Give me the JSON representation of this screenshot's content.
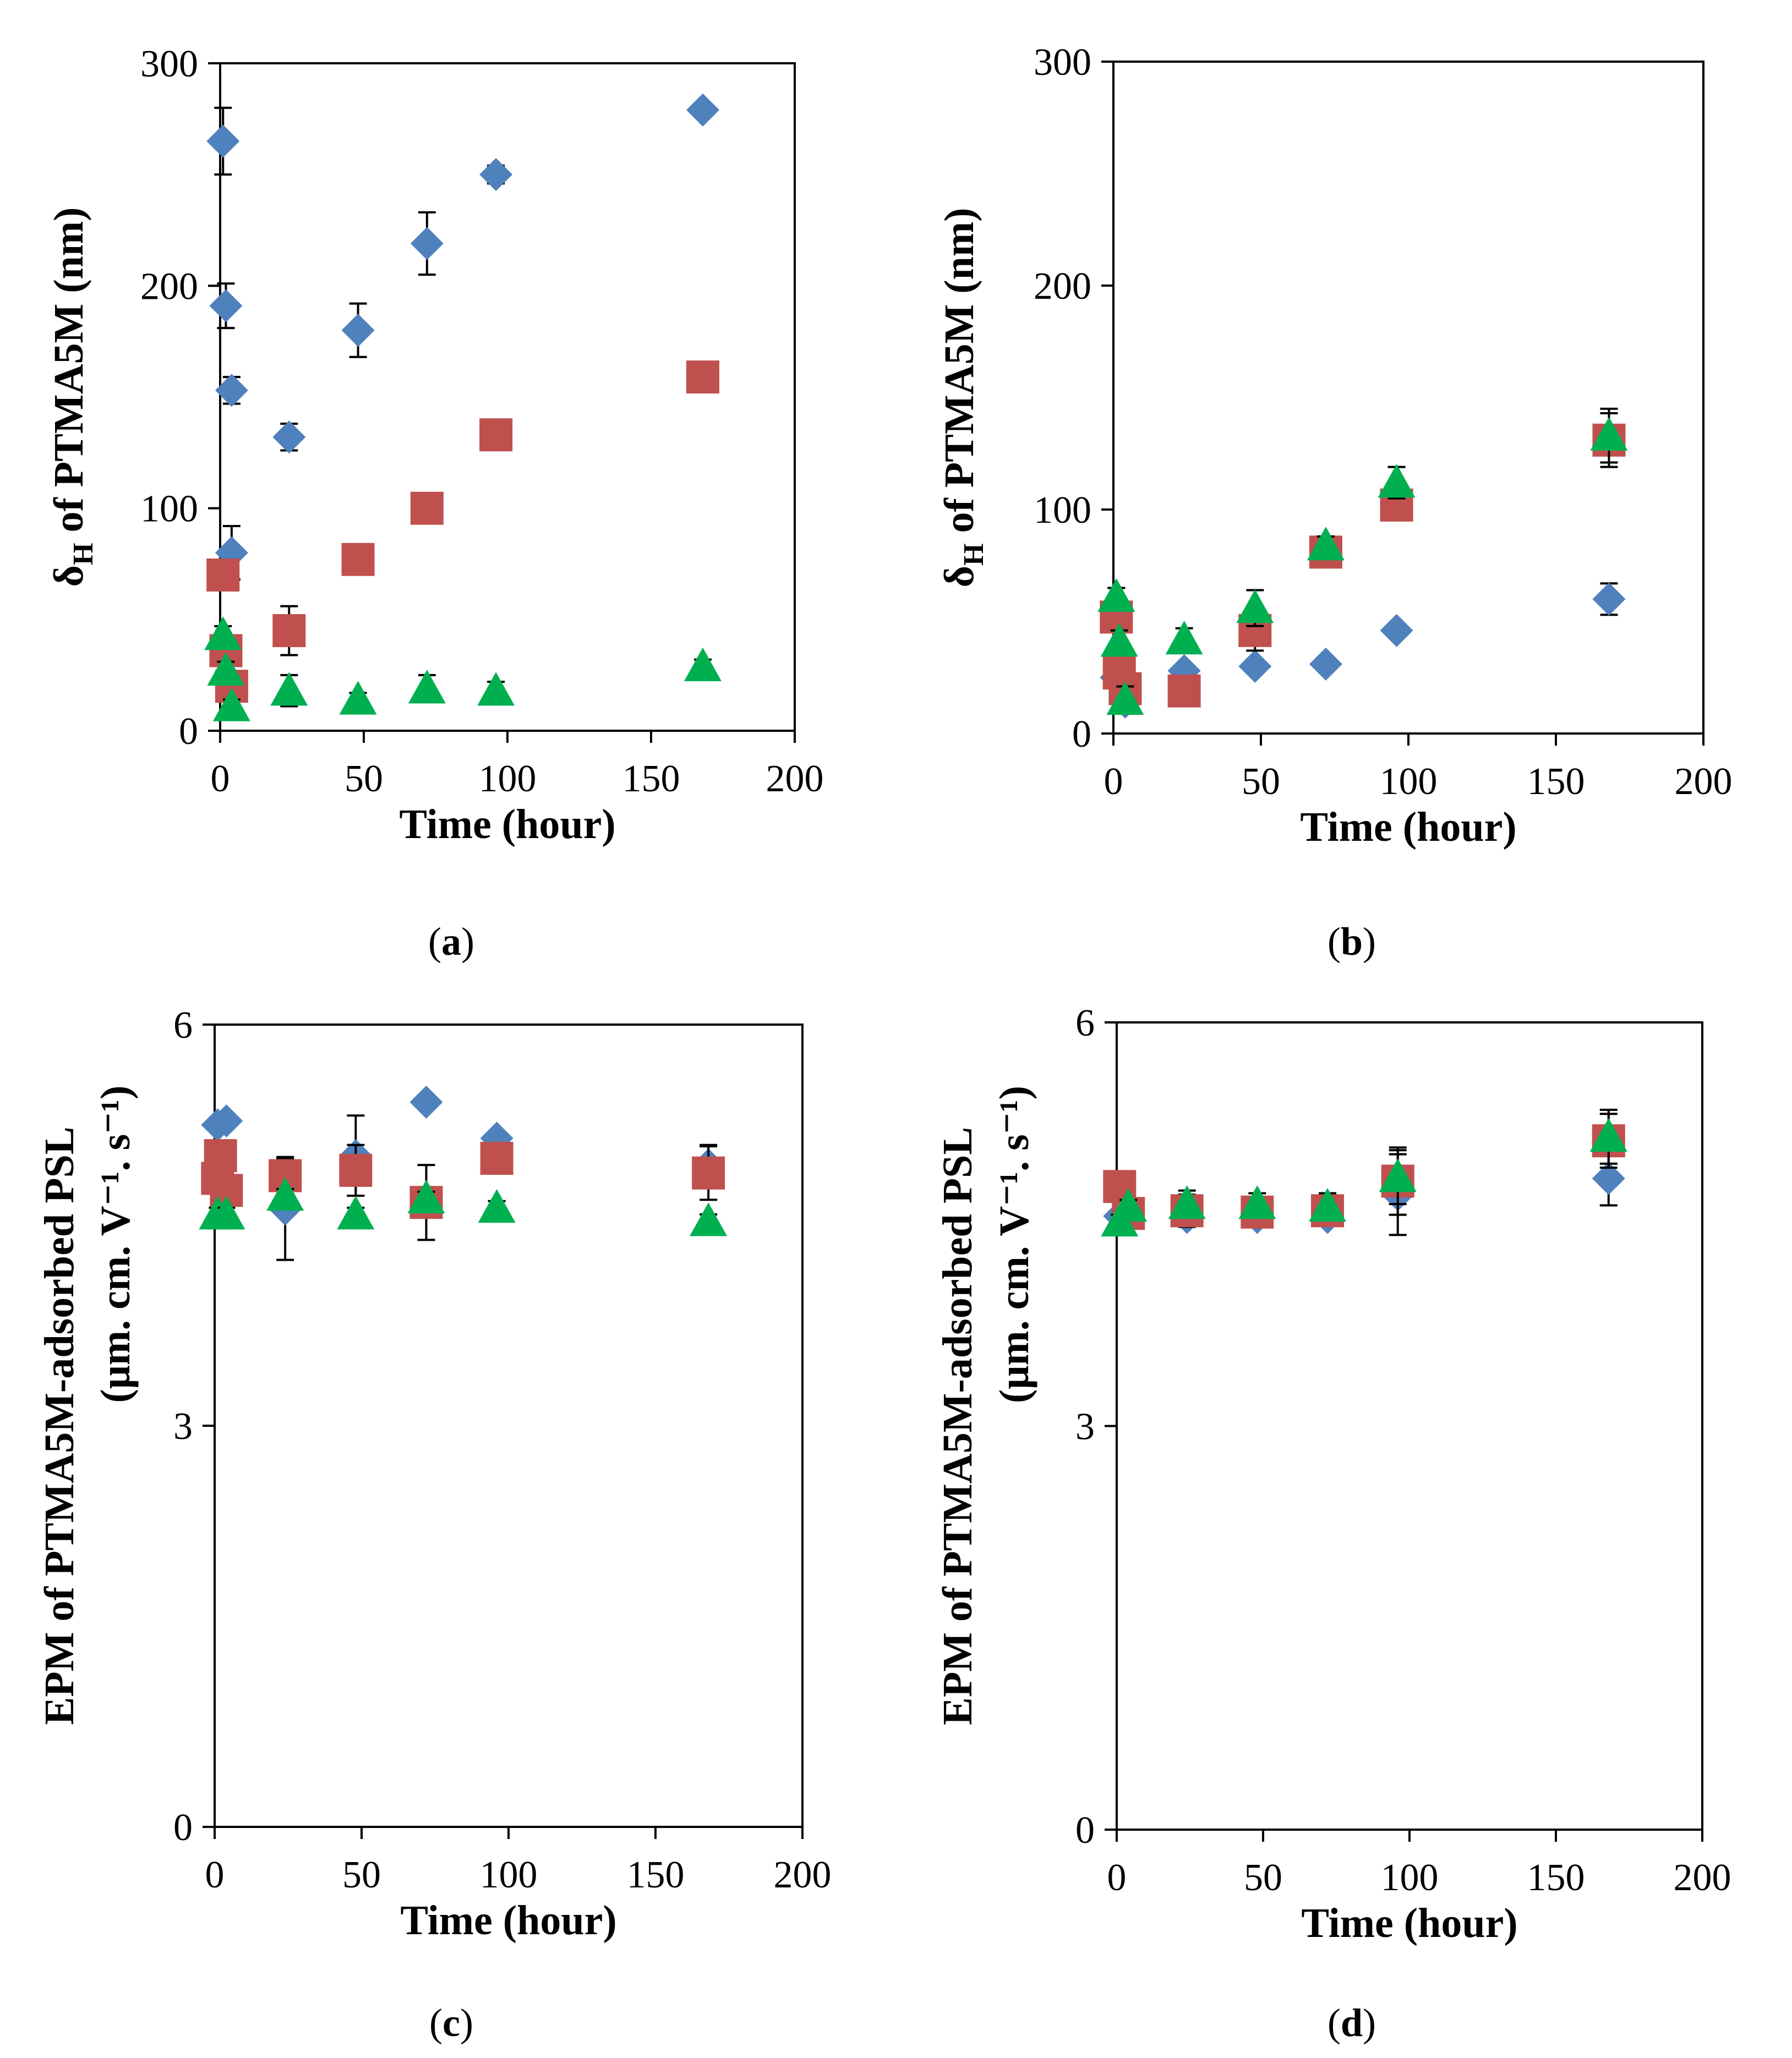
{
  "colors": {
    "series_a": "#4F81BD",
    "series_b": "#C0504D",
    "series_c": "#00B050",
    "axis": "#000000",
    "errorbar": "#000000"
  },
  "chart_data": [
    {
      "id": "a",
      "type": "scatter",
      "caption_letter": "a",
      "xlabel": "Time (hour)",
      "ylabel_main": "δ",
      "ylabel_sub": "H",
      "ylabel_rest": " of PTMA5M (nm)",
      "xlim": [
        0,
        200
      ],
      "ylim": [
        0,
        300
      ],
      "xticks": [
        "0",
        "50",
        "100",
        "150",
        "200"
      ],
      "yticks": [
        "0",
        "100",
        "200",
        "300"
      ],
      "series": [
        {
          "color_key": "series_a",
          "marker": "diamond",
          "points": [
            [
              1,
              265,
              15
            ],
            [
              2,
              191,
              10
            ],
            [
              4,
              153,
              6
            ],
            [
              4,
              80,
              12
            ],
            [
              24,
              132,
              6
            ],
            [
              48,
              180,
              12
            ],
            [
              72,
              219,
              14
            ],
            [
              96,
              250,
              4
            ],
            [
              168,
              279,
              3
            ]
          ]
        },
        {
          "color_key": "series_b",
          "marker": "square",
          "points": [
            [
              1,
              70,
              4
            ],
            [
              2,
              36,
              4
            ],
            [
              4,
              20,
              4
            ],
            [
              24,
              45,
              11
            ],
            [
              48,
              77,
              5
            ],
            [
              72,
              100,
              4
            ],
            [
              96,
              133,
              4
            ],
            [
              168,
              159,
              4
            ]
          ]
        },
        {
          "color_key": "series_c",
          "marker": "triangle",
          "points": [
            [
              1,
              43,
              4
            ],
            [
              2,
              27,
              4
            ],
            [
              4,
              11,
              3
            ],
            [
              24,
              18,
              7
            ],
            [
              48,
              14,
              3
            ],
            [
              72,
              19,
              6
            ],
            [
              96,
              18,
              4
            ],
            [
              168,
              29,
              3
            ]
          ]
        }
      ]
    },
    {
      "id": "b",
      "type": "scatter",
      "caption_letter": "b",
      "xlabel": "Time (hour)",
      "ylabel_main": "δ",
      "ylabel_sub": "H",
      "ylabel_rest": " of PTMA5M (nm)",
      "xlim": [
        0,
        200
      ],
      "ylim": [
        0,
        300
      ],
      "xticks": [
        "0",
        "50",
        "100",
        "150",
        "200"
      ],
      "yticks": [
        "0",
        "100",
        "200",
        "300"
      ],
      "series": [
        {
          "color_key": "series_a",
          "marker": "diamond",
          "points": [
            [
              1,
              25,
              3
            ],
            [
              4,
              14,
              3
            ],
            [
              24,
              28,
              3
            ],
            [
              48,
              30,
              3
            ],
            [
              72,
              31,
              3
            ],
            [
              96,
              46,
              3
            ],
            [
              168,
              60,
              7
            ]
          ]
        },
        {
          "color_key": "series_b",
          "marker": "square",
          "points": [
            [
              1,
              52,
              5
            ],
            [
              2,
              27,
              5
            ],
            [
              4,
              20,
              5
            ],
            [
              24,
              19,
              4
            ],
            [
              48,
              46,
              9
            ],
            [
              72,
              81,
              4
            ],
            [
              96,
              102,
              5
            ],
            [
              168,
              131,
              12
            ]
          ]
        },
        {
          "color_key": "series_c",
          "marker": "triangle",
          "points": [
            [
              1,
              61,
              4
            ],
            [
              2,
              41,
              5
            ],
            [
              4,
              15,
              6
            ],
            [
              24,
              42,
              5
            ],
            [
              48,
              56,
              8
            ],
            [
              72,
              84,
              4
            ],
            [
              96,
              112,
              7
            ],
            [
              168,
              133,
              12
            ]
          ]
        }
      ]
    },
    {
      "id": "c",
      "type": "scatter",
      "caption_letter": "c",
      "xlabel": "Time (hour)",
      "ylabel_line1": "EPM of PTMA5M-adsorbed PSL",
      "ylabel_line2": "(μm. cm. V⁻¹. s⁻¹)",
      "xlim": [
        0,
        200
      ],
      "ylim": [
        0,
        6
      ],
      "xticks": [
        "0",
        "50",
        "100",
        "150",
        "200"
      ],
      "yticks": [
        "0",
        "3",
        "6"
      ],
      "series": [
        {
          "color_key": "series_a",
          "marker": "diamond",
          "points": [
            [
              1,
              5.25,
              0.05
            ],
            [
              4,
              5.28,
              0.05
            ],
            [
              24,
              4.62,
              0.38
            ],
            [
              48,
              5.02,
              0.3
            ],
            [
              72,
              5.42,
              0.04
            ],
            [
              96,
              5.15,
              0.04
            ],
            [
              168,
              4.95,
              0.15
            ]
          ]
        },
        {
          "color_key": "series_b",
          "marker": "square",
          "points": [
            [
              1,
              4.85,
              0.1
            ],
            [
              2,
              5.02,
              0.1
            ],
            [
              4,
              4.76,
              0.1
            ],
            [
              24,
              4.87,
              0.14
            ],
            [
              48,
              4.91,
              0.19
            ],
            [
              72,
              4.67,
              0.28
            ],
            [
              96,
              5.0,
              0.05
            ],
            [
              168,
              4.89,
              0.2
            ]
          ]
        },
        {
          "color_key": "series_c",
          "marker": "triangle",
          "points": [
            [
              1,
              4.58,
              0.05
            ],
            [
              4,
              4.58,
              0.05
            ],
            [
              24,
              4.72,
              0.05
            ],
            [
              48,
              4.58,
              0.05
            ],
            [
              72,
              4.7,
              0.05
            ],
            [
              96,
              4.63,
              0.05
            ],
            [
              168,
              4.53,
              0.05
            ]
          ]
        }
      ]
    },
    {
      "id": "d",
      "type": "scatter",
      "caption_letter": "d",
      "xlabel": "Time (hour)",
      "ylabel_line1": "EPM of PTMA5M-adsorbed PSL",
      "ylabel_line2": "(μm. cm. V⁻¹. s⁻¹)",
      "xlim": [
        0,
        200
      ],
      "ylim": [
        0,
        6
      ],
      "xticks": [
        "0",
        "50",
        "100",
        "150",
        "200"
      ],
      "yticks": [
        "0",
        "3",
        "6"
      ],
      "series": [
        {
          "color_key": "series_a",
          "marker": "diamond",
          "points": [
            [
              1,
              4.56,
              0.05
            ],
            [
              4,
              4.6,
              0.05
            ],
            [
              24,
              4.55,
              0.05
            ],
            [
              48,
              4.55,
              0.05
            ],
            [
              72,
              4.55,
              0.05
            ],
            [
              96,
              4.72,
              0.3
            ],
            [
              168,
              4.84,
              0.2
            ]
          ]
        },
        {
          "color_key": "series_b",
          "marker": "square",
          "points": [
            [
              1,
              4.78,
              0.06
            ],
            [
              4,
              4.58,
              0.06
            ],
            [
              24,
              4.6,
              0.12
            ],
            [
              48,
              4.59,
              0.1
            ],
            [
              72,
              4.6,
              0.1
            ],
            [
              96,
              4.82,
              0.25
            ],
            [
              168,
              5.12,
              0.2
            ]
          ]
        },
        {
          "color_key": "series_c",
          "marker": "triangle",
          "points": [
            [
              1,
              4.52,
              0.05
            ],
            [
              4,
              4.63,
              0.05
            ],
            [
              24,
              4.65,
              0.1
            ],
            [
              48,
              4.65,
              0.08
            ],
            [
              72,
              4.63,
              0.1
            ],
            [
              96,
              4.85,
              0.2
            ],
            [
              168,
              5.15,
              0.2
            ]
          ]
        }
      ]
    }
  ]
}
